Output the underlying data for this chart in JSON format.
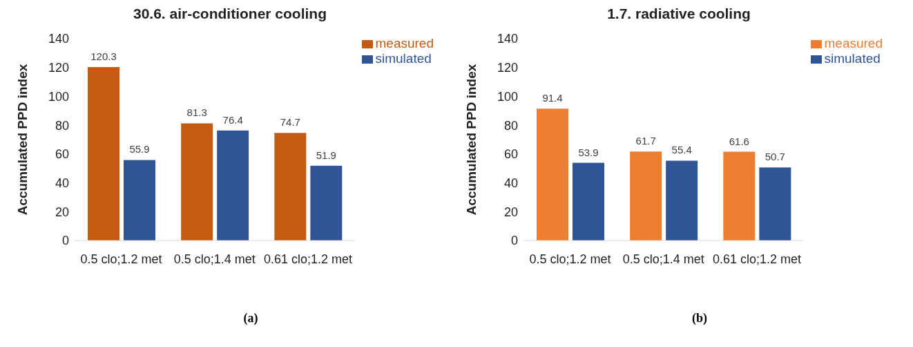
{
  "chart_data": [
    {
      "type": "bar",
      "title": "30.6. air-conditioner cooling",
      "ylabel": "Accumulated PPD index",
      "categories": [
        "0.5 clo;1.2 met",
        "0.5 clo;1.4 met",
        "0.61 clo;1.2 met"
      ],
      "series": [
        {
          "name": "measured",
          "color": "#c55a11",
          "values": [
            120.3,
            81.3,
            74.7
          ]
        },
        {
          "name": "simulated",
          "color": "#2f5597",
          "values": [
            55.9,
            76.4,
            51.9
          ]
        }
      ],
      "ylim": [
        0,
        140
      ],
      "yticks": [
        0,
        20,
        40,
        60,
        80,
        100,
        120,
        140
      ],
      "grid": false,
      "legend": "top right",
      "data_labels": true,
      "annotations": [
        "(a)"
      ]
    },
    {
      "type": "bar",
      "title": "1.7. radiative cooling",
      "ylabel": "Accumulated PPD index",
      "categories": [
        "0.5 clo;1.2 met",
        "0.5 clo;1.4 met",
        "0.61 clo;1.2 met"
      ],
      "series": [
        {
          "name": "measured",
          "color": "#ed7d31",
          "values": [
            91.4,
            61.7,
            61.6
          ]
        },
        {
          "name": "simulated",
          "color": "#2f5597",
          "values": [
            53.9,
            55.4,
            50.7
          ]
        }
      ],
      "ylim": [
        0,
        140
      ],
      "yticks": [
        0,
        20,
        40,
        60,
        80,
        100,
        120,
        140
      ],
      "grid": false,
      "legend": "top right",
      "data_labels": true,
      "annotations": [
        "(b)"
      ]
    }
  ]
}
